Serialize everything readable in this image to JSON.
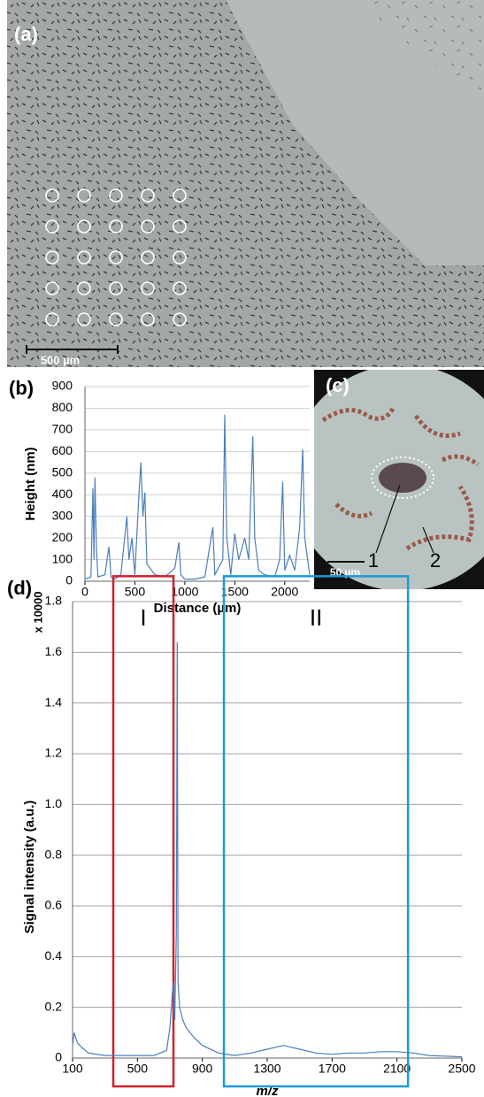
{
  "panels": {
    "a": {
      "label": "(a)",
      "scale_bar": "500 µm"
    },
    "c": {
      "label": "(c)",
      "scale_bar": "50 µm",
      "markers": [
        "1",
        "2"
      ]
    }
  },
  "chart_data": [
    {
      "type": "line",
      "panel_label": "(b)",
      "y_label": "Height (nm)",
      "x_label": "Distance (µm)",
      "xlim": [
        0,
        2250
      ],
      "ylim": [
        0,
        900
      ],
      "xticks": [
        0,
        500,
        1000,
        1500,
        2000
      ],
      "yticks": [
        0,
        100,
        200,
        300,
        400,
        500,
        600,
        700,
        800,
        900
      ],
      "grid": true,
      "series": [
        {
          "color": "#4a7ebb",
          "x": [
            0,
            60,
            80,
            90,
            100,
            115,
            130,
            200,
            240,
            260,
            300,
            360,
            420,
            440,
            470,
            500,
            540,
            560,
            580,
            600,
            620,
            700,
            800,
            900,
            940,
            960,
            1000,
            1100,
            1200,
            1280,
            1300,
            1380,
            1400,
            1420,
            1460,
            1500,
            1540,
            1600,
            1640,
            1680,
            1700,
            1740,
            1800,
            1900,
            1950,
            1980,
            2000,
            2050,
            2100,
            2150,
            2180,
            2200,
            2250
          ],
          "values": [
            10,
            20,
            430,
            100,
            480,
            150,
            20,
            30,
            160,
            20,
            10,
            30,
            300,
            100,
            200,
            30,
            400,
            550,
            300,
            410,
            80,
            30,
            20,
            60,
            180,
            30,
            10,
            10,
            20,
            250,
            30,
            100,
            770,
            200,
            30,
            220,
            100,
            200,
            100,
            670,
            200,
            50,
            30,
            20,
            100,
            460,
            50,
            120,
            50,
            250,
            610,
            200,
            30
          ]
        }
      ]
    },
    {
      "type": "line",
      "panel_label": "(d)",
      "y_label": "Signal intensity (a.u.)",
      "y_unit": "x 10000",
      "x_label": "m/z",
      "xlim": [
        100,
        2500
      ],
      "ylim": [
        0,
        1.8
      ],
      "xticks": [
        100,
        500,
        900,
        1300,
        1700,
        2100,
        2500
      ],
      "yticks": [
        0,
        0.2,
        0.4,
        0.6,
        0.8,
        {
          "value": 1,
          "label": "1.0"
        },
        1.2,
        1.4,
        1.6,
        1.8
      ],
      "grid": true,
      "regions": [
        {
          "label": "I",
          "x": [
            351,
            722
          ],
          "top": 1.9,
          "color": "#d0202a"
        },
        {
          "label": "II",
          "x": [
            1033,
            2168
          ],
          "top": 1.9,
          "color": "#1a9ad6"
        }
      ],
      "series": [
        {
          "color": "#4a7ebb",
          "x": [
            100,
            110,
            130,
            160,
            200,
            300,
            500,
            600,
            680,
            700,
            720,
            730,
            740,
            745,
            750,
            760,
            780,
            800,
            850,
            900,
            1000,
            1100,
            1200,
            1300,
            1400,
            1500,
            1600,
            1700,
            1800,
            1900,
            2000,
            2100,
            2200,
            2300,
            2500
          ],
          "values": [
            0.05,
            0.1,
            0.06,
            0.04,
            0.02,
            0.01,
            0.01,
            0.01,
            0.03,
            0.12,
            0.3,
            0.15,
            0.5,
            1.64,
            0.3,
            0.2,
            0.15,
            0.12,
            0.08,
            0.05,
            0.02,
            0.01,
            0.02,
            0.035,
            0.05,
            0.035,
            0.02,
            0.015,
            0.02,
            0.02,
            0.025,
            0.025,
            0.02,
            0.01,
            0.005
          ]
        }
      ]
    }
  ]
}
